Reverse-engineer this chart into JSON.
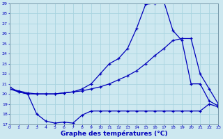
{
  "title": "Graphe des températures (°C)",
  "bg_color": "#cde8f0",
  "line_color": "#0000bb",
  "grid_color": "#a8d4e0",
  "ylim": [
    17,
    29
  ],
  "xlim": [
    0,
    23
  ],
  "yticks": [
    17,
    18,
    19,
    20,
    21,
    22,
    23,
    24,
    25,
    26,
    27,
    28,
    29
  ],
  "xticks": [
    0,
    1,
    2,
    3,
    4,
    5,
    6,
    7,
    8,
    9,
    10,
    11,
    12,
    13,
    14,
    15,
    16,
    17,
    18,
    19,
    20,
    21,
    22,
    23
  ],
  "line_min_x": [
    0,
    1,
    2,
    3,
    4,
    5,
    6,
    7,
    8,
    9,
    10,
    11,
    12,
    13,
    14,
    15,
    16,
    17,
    18,
    19,
    20,
    21,
    22,
    23
  ],
  "line_min_y": [
    20.5,
    20.2,
    20.0,
    18.0,
    17.3,
    17.1,
    17.2,
    17.1,
    17.9,
    18.3,
    18.3,
    18.3,
    18.3,
    18.3,
    18.3,
    18.3,
    18.3,
    18.3,
    18.3,
    18.3,
    18.3,
    18.3,
    19.0,
    18.7
  ],
  "line_avg_x": [
    0,
    1,
    2,
    3,
    4,
    5,
    6,
    7,
    8,
    9,
    10,
    11,
    12,
    13,
    14,
    15,
    16,
    17,
    18,
    19,
    20,
    21,
    22,
    23
  ],
  "line_avg_y": [
    20.5,
    20.3,
    20.1,
    20.0,
    20.0,
    20.0,
    20.1,
    20.2,
    20.3,
    20.5,
    20.7,
    21.0,
    21.4,
    21.8,
    22.3,
    23.0,
    23.8,
    24.5,
    25.3,
    25.5,
    25.5,
    22.0,
    20.5,
    19.0
  ],
  "line_max_x": [
    0,
    1,
    2,
    3,
    4,
    5,
    6,
    7,
    8,
    9,
    10,
    11,
    12,
    13,
    14,
    15,
    16,
    17,
    18,
    19,
    20,
    21,
    22,
    23
  ],
  "line_max_y": [
    20.7,
    20.2,
    20.0,
    20.0,
    20.0,
    20.0,
    20.1,
    20.2,
    20.5,
    21.0,
    22.0,
    23.0,
    23.5,
    24.5,
    26.5,
    28.9,
    29.0,
    29.2,
    26.3,
    25.3,
    21.0,
    21.0,
    19.3,
    18.8
  ]
}
